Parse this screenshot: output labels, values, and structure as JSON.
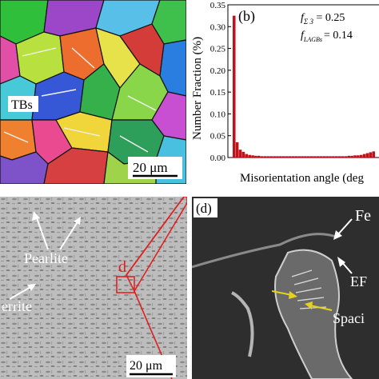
{
  "panel_a": {
    "label": "TBs",
    "scale_bar": "20 μm"
  },
  "panel_b": {
    "panel_label": "(b)",
    "annotation_sigma3": "f",
    "annotation_sigma3_sub": "Σ 3",
    "annotation_sigma3_value": " = 0.25",
    "annotation_lagb": "f",
    "annotation_lagb_sub": "LAGBs",
    "annotation_lagb_value": "= 0.14",
    "colors": {
      "bar": "#c0121c"
    }
  },
  "panel_c": {
    "label_pearlite": "Pearlite",
    "label_ferrite": "errite",
    "label_d": "d",
    "scale_bar": "20 μm"
  },
  "panel_d": {
    "panel_label": "(d)",
    "label_fe": "Fe",
    "label_ef": "EF",
    "label_spacing": "Spaci"
  },
  "chart_data": {
    "type": "bar",
    "title": "",
    "xlabel": "Misorientation angle (deg",
    "ylabel": "Number Fraction (%)",
    "ylim": [
      0,
      0.35
    ],
    "yticks": [
      "0.00",
      "0.05",
      "0.10",
      "0.15",
      "0.20",
      "0.25",
      "0.30",
      "0.35"
    ],
    "x": [
      2,
      3,
      4,
      5,
      6,
      7,
      8,
      9,
      10,
      11,
      12,
      13,
      14,
      15,
      16,
      17,
      18,
      19,
      20,
      21,
      22,
      23,
      24,
      25,
      26,
      27,
      28,
      29,
      30,
      31,
      32,
      33,
      34,
      35,
      36,
      37,
      38,
      39,
      40,
      41,
      42,
      43,
      44,
      45,
      46,
      47
    ],
    "values": [
      0.325,
      0.035,
      0.018,
      0.013,
      0.008,
      0.006,
      0.005,
      0.004,
      0.004,
      0.003,
      0.003,
      0.003,
      0.003,
      0.003,
      0.003,
      0.003,
      0.003,
      0.003,
      0.003,
      0.003,
      0.003,
      0.003,
      0.003,
      0.003,
      0.003,
      0.003,
      0.003,
      0.003,
      0.003,
      0.003,
      0.003,
      0.003,
      0.003,
      0.003,
      0.003,
      0.003,
      0.003,
      0.004,
      0.004,
      0.005,
      0.005,
      0.006,
      0.008,
      0.01,
      0.012,
      0.014
    ],
    "x_range": [
      0,
      49
    ]
  }
}
